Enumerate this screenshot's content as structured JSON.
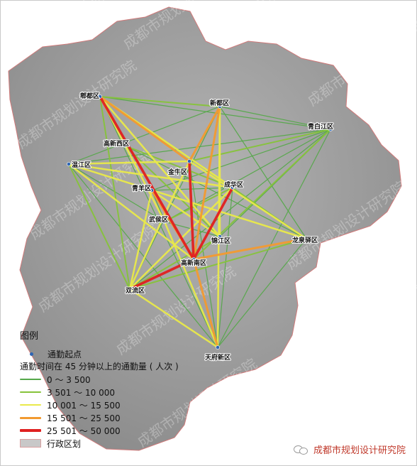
{
  "legend": {
    "title": "图例",
    "origin_label": "通勤起点",
    "flow_heading": "通勤时间在 45 分钟以上的通勤量 ( 人次 )",
    "classes": [
      {
        "label": "0 ～ 3 500",
        "color": "#55a84a",
        "width": 1.2
      },
      {
        "label": "3 501 ～ 10 000",
        "color": "#86c33a",
        "width": 2.0
      },
      {
        "label": "10 001 ～ 15 500",
        "color": "#e9e94a",
        "width": 2.5
      },
      {
        "label": "15 501 ～ 25 500",
        "color": "#f29a30",
        "width": 3.0
      },
      {
        "label": "25 501 ～ 50 000",
        "color": "#e02020",
        "width": 3.6
      }
    ],
    "admin_label": "行政区划"
  },
  "districts": [
    {
      "id": "pixian",
      "name": "郫都区"
    },
    {
      "id": "xindu",
      "name": "新都区"
    },
    {
      "id": "qingbaijiang",
      "name": "青白江区"
    },
    {
      "id": "gaoxinxi",
      "name": "高新西区"
    },
    {
      "id": "wenjiang",
      "name": "温江区"
    },
    {
      "id": "jinniu",
      "name": "金牛区"
    },
    {
      "id": "qingyang",
      "name": "青羊区"
    },
    {
      "id": "chenghua",
      "name": "成华区"
    },
    {
      "id": "wuhou",
      "name": "武侯区"
    },
    {
      "id": "jinjiang",
      "name": "锦江区"
    },
    {
      "id": "longquanyi",
      "name": "龙泉驿区"
    },
    {
      "id": "gaoxin",
      "name": "高新南区"
    },
    {
      "id": "shuangliu",
      "name": "双流区"
    },
    {
      "id": "tianfu",
      "name": "天府新区"
    }
  ],
  "flows": [
    {
      "from": "pixian",
      "to": "gaoxin",
      "cls": 4
    },
    {
      "from": "xindu",
      "to": "jinniu",
      "cls": 3
    },
    {
      "from": "jinniu",
      "to": "gaoxin",
      "cls": 4
    },
    {
      "from": "chenghua",
      "to": "gaoxin",
      "cls": 4
    },
    {
      "from": "shuangliu",
      "to": "gaoxin",
      "cls": 4
    },
    {
      "from": "pixian",
      "to": "jinniu",
      "cls": 3
    },
    {
      "from": "xindu",
      "to": "gaoxin",
      "cls": 3
    },
    {
      "from": "gaoxin",
      "to": "tianfu",
      "cls": 3
    },
    {
      "from": "gaoxin",
      "to": "longquanyi",
      "cls": 3
    },
    {
      "from": "qingyang",
      "to": "gaoxin",
      "cls": 3
    },
    {
      "from": "pixian",
      "to": "wuhou",
      "cls": 2
    },
    {
      "from": "pixian",
      "to": "chenghua",
      "cls": 2
    },
    {
      "from": "pixian",
      "to": "jinjiang",
      "cls": 2
    },
    {
      "from": "wenjiang",
      "to": "gaoxin",
      "cls": 2
    },
    {
      "from": "wenjiang",
      "to": "jinniu",
      "cls": 2
    },
    {
      "from": "wenjiang",
      "to": "chenghua",
      "cls": 2
    },
    {
      "from": "jinniu",
      "to": "shuangliu",
      "cls": 2
    },
    {
      "from": "qingyang",
      "to": "jinjiang",
      "cls": 2
    },
    {
      "from": "qingyang",
      "to": "shuangliu",
      "cls": 2
    },
    {
      "from": "shuangliu",
      "to": "chenghua",
      "cls": 2
    },
    {
      "from": "shuangliu",
      "to": "tianfu",
      "cls": 2
    },
    {
      "from": "wuhou",
      "to": "tianfu",
      "cls": 2
    },
    {
      "from": "xindu",
      "to": "tianfu",
      "cls": 2
    },
    {
      "from": "xindu",
      "to": "jinjiang",
      "cls": 2
    },
    {
      "from": "jinniu",
      "to": "longquanyi",
      "cls": 2
    },
    {
      "from": "wenjiang",
      "to": "longquanyi",
      "cls": 2
    },
    {
      "from": "pixian",
      "to": "shuangliu",
      "cls": 1
    },
    {
      "from": "pixian",
      "to": "xindu",
      "cls": 1
    },
    {
      "from": "pixian",
      "to": "longquanyi",
      "cls": 1
    },
    {
      "from": "gaoxinxi",
      "to": "chenghua",
      "cls": 1
    },
    {
      "from": "gaoxinxi",
      "to": "jinjiang",
      "cls": 1
    },
    {
      "from": "jinjiang",
      "to": "shuangliu",
      "cls": 1
    },
    {
      "from": "chenghua",
      "to": "wuhou",
      "cls": 1
    },
    {
      "from": "qingbaijiang",
      "to": "jinniu",
      "cls": 1
    },
    {
      "from": "qingbaijiang",
      "to": "gaoxin",
      "cls": 1
    },
    {
      "from": "longquanyi",
      "to": "shuangliu",
      "cls": 1
    },
    {
      "from": "wenjiang",
      "to": "shuangliu",
      "cls": 1
    },
    {
      "from": "wenjiang",
      "to": "xindu",
      "cls": 0
    },
    {
      "from": "wenjiang",
      "to": "qingbaijiang",
      "cls": 0
    },
    {
      "from": "pixian",
      "to": "qingbaijiang",
      "cls": 0
    },
    {
      "from": "xindu",
      "to": "qingbaijiang",
      "cls": 0
    },
    {
      "from": "xindu",
      "to": "shuangliu",
      "cls": 0
    },
    {
      "from": "xindu",
      "to": "longquanyi",
      "cls": 0
    },
    {
      "from": "qingbaijiang",
      "to": "qingyang",
      "cls": 0
    },
    {
      "from": "qingbaijiang",
      "to": "wuhou",
      "cls": 0
    },
    {
      "from": "qingbaijiang",
      "to": "shuangliu",
      "cls": 0
    },
    {
      "from": "qingbaijiang",
      "to": "tianfu",
      "cls": 0
    },
    {
      "from": "qingbaijiang",
      "to": "jinjiang",
      "cls": 0
    },
    {
      "from": "wenjiang",
      "to": "tianfu",
      "cls": 0
    },
    {
      "from": "pixian",
      "to": "tianfu",
      "cls": 0
    },
    {
      "from": "longquanyi",
      "to": "tianfu",
      "cls": 0
    },
    {
      "from": "gaoxinxi",
      "to": "longquanyi",
      "cls": 0
    },
    {
      "from": "jinniu",
      "to": "tianfu",
      "cls": 0
    },
    {
      "from": "chenghua",
      "to": "tianfu",
      "cls": 0
    },
    {
      "from": "qingyang",
      "to": "tianfu",
      "cls": 0
    },
    {
      "from": "wenjiang",
      "to": "wuhou",
      "cls": 0
    },
    {
      "from": "chenghua",
      "to": "qingyang",
      "cls": 0
    },
    {
      "from": "jinjiang",
      "to": "wuhou",
      "cls": 0
    }
  ],
  "watermark_text": "成都市规划设计研究院",
  "source": "成都市规划设计研究院",
  "colors": {
    "region_fill": "#9a9a9a",
    "region_stroke": "#d07a7a",
    "origin_dot": "#2f66b3",
    "source_text": "#c0392b"
  }
}
